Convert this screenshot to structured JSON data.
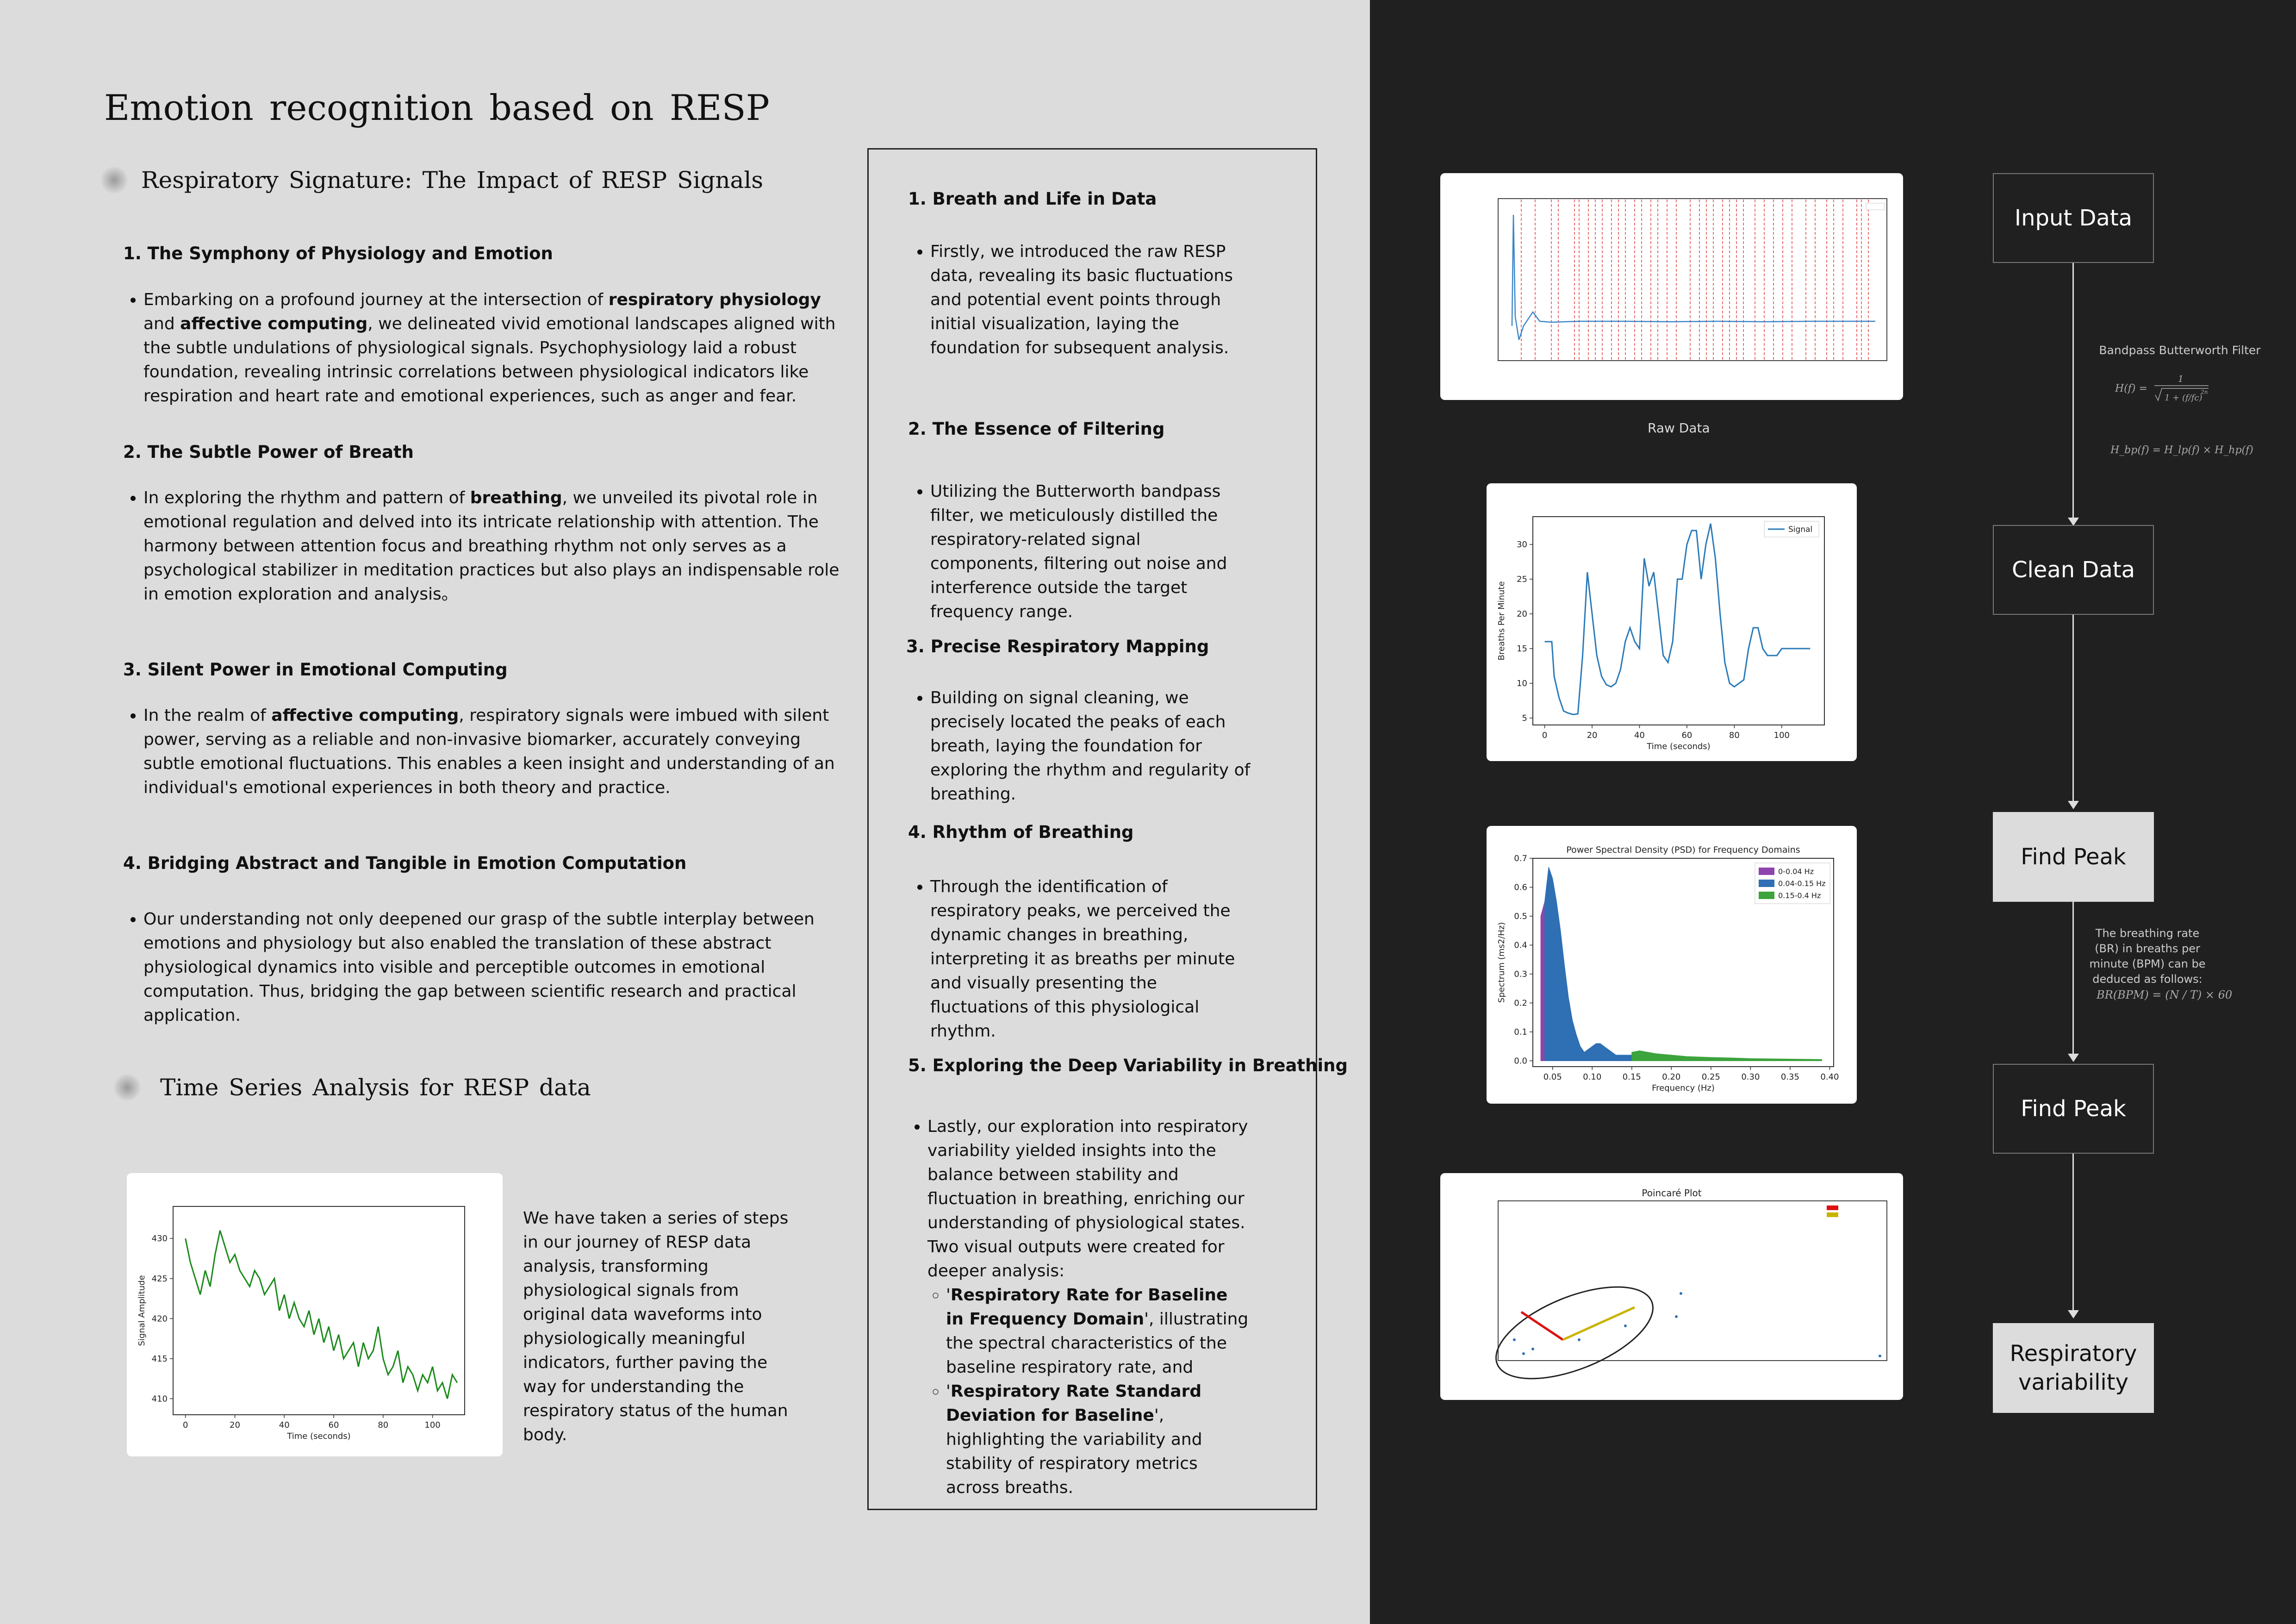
{
  "title": "Emotion recognition based on RESP",
  "section1": {
    "heading": "Respiratory Signature: The Impact of RESP Signals",
    "items": [
      {
        "heading": "1. The Symphony of Physiology and Emotion",
        "t1": "Embarking on a profound journey at the intersection of ",
        "b1": "respiratory physiology",
        "t2": " and ",
        "b2": "affective computing",
        "t3": ", we delineated vivid emotional landscapes aligned with the subtle undulations of physiological signals. Psychophysiology laid a robust foundation, revealing intrinsic correlations between physiological indicators like respiration and heart rate and emotional experiences, such as anger and fear."
      },
      {
        "heading": "2. The Subtle Power of Breath",
        "t1": "In exploring the rhythm and pattern of ",
        "b1": "breathing",
        "t2": ", we unveiled its pivotal role in emotional regulation and delved into its intricate relationship with attention. The harmony between attention focus and breathing rhythm not only serves as a psychological stabilizer in meditation practices but also plays an indispensable role in emotion exploration and analysis。"
      },
      {
        "heading": "3. Silent Power in Emotional Computing",
        "t1": "In the realm of ",
        "b1": "affective computing",
        "t2": ", respiratory signals were imbued with silent power, serving as a reliable and non-invasive biomarker, accurately conveying subtle emotional fluctuations. This enables a keen insight and understanding of an individual's emotional experiences in both theory and practice."
      },
      {
        "heading": "4. Bridging Abstract and Tangible in Emotion Computation",
        "t1": "Our understanding not only deepened our grasp of the subtle interplay between emotions and physiology but also enabled the translation of these abstract physiological dynamics into visible and perceptible outcomes in emotional computation. Thus, bridging the gap between scientific research and practical application."
      }
    ]
  },
  "section2": {
    "heading": "Time Series Analysis for RESP data",
    "text": "We have taken a series of steps in our journey of RESP data analysis, transforming physiological signals from original data waveforms into physiologically meaningful indicators, further paving the way for understanding the respiratory status of the human body."
  },
  "middle": {
    "items": [
      {
        "heading": "1. Breath and Life in Data",
        "text": "Firstly, we introduced the raw RESP data, revealing its basic fluctuations and potential event points through initial visualization, laying the foundation for subsequent analysis."
      },
      {
        "heading": "2. The Essence of Filtering",
        "text": "Utilizing the Butterworth bandpass filter, we meticulously distilled the respiratory-related signal components, filtering out noise and interference outside the target frequency range."
      },
      {
        "heading": "3. Precise Respiratory Mapping",
        "text": "Building on signal cleaning, we precisely located the peaks of each breath, laying the foundation for exploring the rhythm and regularity of breathing."
      },
      {
        "heading": "4. Rhythm of Breathing",
        "text": "Through the identification of respiratory peaks, we perceived the dynamic changes in breathing, interpreting it as breaths per minute and visually presenting the fluctuations of this physiological rhythm."
      },
      {
        "heading": "5. Exploring the Deep Variability in Breathing",
        "text": "Lastly, our exploration into respiratory variability yielded insights into the balance between stability and fluctuation in breathing, enriching our understanding of physiological states. Two visual outputs were created for deeper analysis:",
        "sub": [
          {
            "q1": "'",
            "b": "Respiratory Rate for Baseline in Frequency Domain",
            "t": "', illustrating the spectral characteristics of the baseline respiratory rate, and"
          },
          {
            "q1": "'",
            "b": "Respiratory Rate Standard Deviation for Baseline",
            "t": "', highlighting the variability and stability of respiratory metrics across breaths."
          }
        ]
      }
    ]
  },
  "flow": {
    "boxes": [
      "Input Data",
      "Clean Data",
      "Find Peak",
      "Find Peak",
      "Respiratory variability"
    ],
    "filter_label": "Bandpass Butterworth Filter",
    "br_note": "The breathing rate (BR) in breaths per minute (BPM) can be deduced as follows:",
    "formula1_lhs": "H(f) =",
    "formula2": "H_bp(f) = H_lp(f) × H_hp(f)",
    "formula3": "BR(BPM) = (N / T) × 60",
    "raw_caption": "Raw Data"
  },
  "chart_data": [
    {
      "type": "line",
      "title": "",
      "xlabel": "Time (seconds)",
      "ylabel": "Signal Amplitude",
      "xlim": [
        -5,
        113
      ],
      "ylim": [
        408,
        434
      ],
      "xticks": [
        "0",
        "20",
        "40",
        "60",
        "80",
        "100"
      ],
      "yticks": [
        "410",
        "415",
        "420",
        "425",
        "430"
      ],
      "color": "#1a8a1a",
      "x": [
        0,
        2,
        4,
        6,
        8,
        10,
        12,
        14,
        16,
        18,
        20,
        22,
        24,
        26,
        28,
        30,
        32,
        34,
        36,
        38,
        40,
        42,
        44,
        46,
        48,
        50,
        52,
        54,
        56,
        58,
        60,
        62,
        64,
        66,
        68,
        70,
        72,
        74,
        76,
        78,
        80,
        82,
        84,
        86,
        88,
        90,
        92,
        94,
        96,
        98,
        100,
        102,
        104,
        106,
        108,
        110
      ],
      "values": [
        430,
        427,
        425,
        423,
        426,
        424,
        428,
        431,
        429,
        427,
        428,
        426,
        425,
        424,
        426,
        425,
        423,
        424,
        425,
        421,
        423,
        420,
        422,
        420,
        419,
        421,
        418,
        420,
        417,
        419,
        416,
        418,
        415,
        416,
        417,
        414,
        417,
        415,
        416,
        419,
        415,
        413,
        414,
        416,
        412,
        414,
        413,
        411,
        413,
        412,
        414,
        411,
        412,
        410,
        413,
        412
      ]
    },
    {
      "type": "line",
      "title": "",
      "legend": [
        "Signal"
      ],
      "xlabel": "Time (seconds)",
      "ylabel": "Breaths Per Minute",
      "xlim": [
        -5,
        118
      ],
      "ylim": [
        4,
        34
      ],
      "xticks": [
        "0",
        "20",
        "40",
        "60",
        "80",
        "100"
      ],
      "yticks": [
        "5",
        "10",
        "15",
        "20",
        "25",
        "30"
      ],
      "color": "#2a7ab8",
      "x": [
        0,
        3,
        4,
        6,
        8,
        10,
        12,
        14,
        16,
        18,
        20,
        22,
        24,
        26,
        28,
        30,
        32,
        34,
        36,
        38,
        40,
        42,
        44,
        46,
        48,
        50,
        52,
        54,
        56,
        58,
        60,
        62,
        64,
        66,
        68,
        70,
        72,
        74,
        76,
        78,
        80,
        82,
        84,
        86,
        88,
        90,
        92,
        94,
        96,
        98,
        100,
        102,
        104,
        106,
        108,
        110,
        112
      ],
      "values": [
        16,
        16,
        11,
        8,
        6,
        5.7,
        5.5,
        5.6,
        14,
        26,
        20,
        14,
        11,
        9.8,
        9.5,
        10,
        12,
        16,
        18,
        16,
        15,
        28,
        24,
        26,
        20,
        14,
        13,
        16,
        25,
        25,
        30,
        32,
        32,
        25,
        30,
        33,
        28,
        20,
        13,
        10,
        9.5,
        10,
        10.5,
        15,
        18,
        18,
        15,
        14,
        14,
        14,
        15,
        15,
        15,
        15,
        15,
        15,
        15
      ]
    },
    {
      "type": "area",
      "title": "Power Spectral Density (PSD) for Frequency Domains",
      "xlabel": "Frequency (Hz)",
      "ylabel": "Spectrum (ms2/Hz)",
      "xlim": [
        0.025,
        0.405
      ],
      "ylim": [
        -0.02,
        0.7
      ],
      "xticks": [
        "0.05",
        "0.10",
        "0.15",
        "0.20",
        "0.25",
        "0.30",
        "0.35",
        "0.40"
      ],
      "yticks": [
        "0.0",
        "0.1",
        "0.2",
        "0.3",
        "0.4",
        "0.5",
        "0.6",
        "0.7"
      ],
      "series": [
        {
          "name": "0-0.04 Hz",
          "color": "#8e44ad",
          "x": [
            0.035,
            0.04
          ],
          "values": [
            0.5,
            0.55
          ]
        },
        {
          "name": "0.04-0.15 Hz",
          "color": "#2f6fb3",
          "x": [
            0.04,
            0.045,
            0.05,
            0.055,
            0.06,
            0.065,
            0.07,
            0.075,
            0.08,
            0.085,
            0.09,
            0.095,
            0.1,
            0.105,
            0.11,
            0.115,
            0.12,
            0.125,
            0.13,
            0.135,
            0.14,
            0.145,
            0.15
          ],
          "values": [
            0.55,
            0.67,
            0.63,
            0.55,
            0.45,
            0.33,
            0.22,
            0.14,
            0.09,
            0.05,
            0.03,
            0.04,
            0.05,
            0.06,
            0.06,
            0.05,
            0.04,
            0.03,
            0.02,
            0.02,
            0.02,
            0.02,
            0.02
          ]
        },
        {
          "name": "0.15-0.4 Hz",
          "color": "#3da33d",
          "x": [
            0.15,
            0.16,
            0.17,
            0.18,
            0.2,
            0.22,
            0.25,
            0.28,
            0.3,
            0.33,
            0.36,
            0.39
          ],
          "values": [
            0.03,
            0.035,
            0.03,
            0.025,
            0.02,
            0.015,
            0.012,
            0.01,
            0.008,
            0.007,
            0.006,
            0.005
          ]
        }
      ]
    }
  ]
}
